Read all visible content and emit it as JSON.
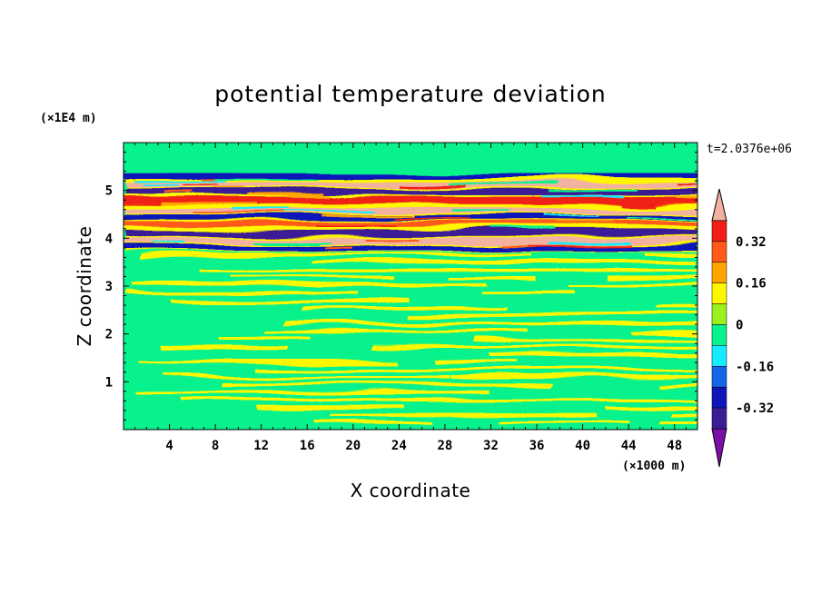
{
  "chart_data": {
    "type": "heatmap",
    "title": "potential temperature deviation",
    "xlabel": "X coordinate",
    "ylabel": "Z coordinate",
    "x_unit": "(×1000 m)",
    "y_unit": "(×1E4 m)",
    "time_label": "t=2.0376e+06",
    "xlim": [
      0,
      50
    ],
    "ylim": [
      0,
      6
    ],
    "x_ticks": [
      4,
      8,
      12,
      16,
      20,
      24,
      28,
      32,
      36,
      40,
      44,
      48
    ],
    "y_ticks": [
      1,
      2,
      3,
      4,
      5
    ],
    "colorbar": {
      "levels": [
        -0.48,
        -0.4,
        -0.32,
        -0.24,
        -0.16,
        -0.08,
        0,
        0.08,
        0.16,
        0.24,
        0.32,
        0.4
      ],
      "labels": [
        "0.32",
        "0.16",
        "0",
        "-0.16",
        "-0.32"
      ],
      "label_values": [
        0.32,
        0.16,
        0,
        -0.16,
        -0.32
      ],
      "colors": [
        "#7a10a8",
        "#3a1d96",
        "#0f17b8",
        "#1466e6",
        "#16ecff",
        "#07f28d",
        "#9cf01e",
        "#fff700",
        "#ffa500",
        "#ff5a1a",
        "#f02018",
        "#f3b1a0"
      ]
    },
    "bands": [
      {
        "z": 5.3,
        "value": -0.32
      },
      {
        "z": 5.1,
        "value": 0.44
      },
      {
        "z": 4.95,
        "value": -0.4
      },
      {
        "z": 4.8,
        "value": 0.32
      },
      {
        "z": 4.6,
        "value": 0.44
      },
      {
        "z": 4.45,
        "value": -0.32
      },
      {
        "z": 4.3,
        "value": 0.24
      },
      {
        "z": 4.1,
        "value": -0.4
      },
      {
        "z": 3.95,
        "value": 0.44
      },
      {
        "z": 3.8,
        "value": -0.32
      }
    ]
  }
}
